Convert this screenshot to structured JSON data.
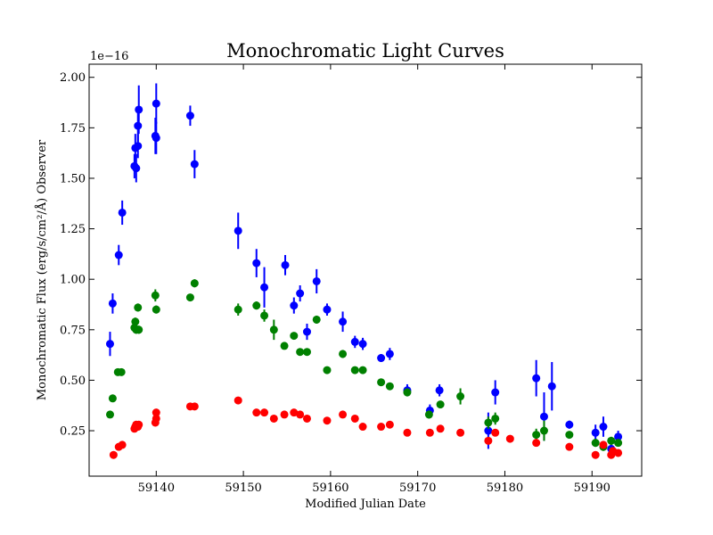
{
  "chart_data": {
    "type": "scatter",
    "title": "Monochromatic Light Curves",
    "xlabel": "Modified Julian Date",
    "ylabel": "Monochromatic Flux (erg/s/cm²/Å) Observer",
    "y_scale_label": "1e−16",
    "xlim": [
      59132.3,
      59195.7
    ],
    "ylim": [
      0.025,
      2.065
    ],
    "x_ticks": [
      59140,
      59150,
      59160,
      59170,
      59180,
      59190
    ],
    "y_ticks": [
      0.25,
      0.5,
      0.75,
      1.0,
      1.25,
      1.5,
      1.75,
      2.0
    ],
    "y_tick_labels": [
      "0.25",
      "0.50",
      "0.75",
      "1.00",
      "1.25",
      "1.50",
      "1.75",
      "2.00"
    ],
    "grid": false,
    "series": [
      {
        "color": "#0000ff",
        "points": [
          [
            59134.7,
            0.68,
            0.06
          ],
          [
            59135.0,
            0.88,
            0.05
          ],
          [
            59135.7,
            1.12,
            0.05
          ],
          [
            59136.1,
            1.33,
            0.06
          ],
          [
            59137.5,
            1.56,
            0.06
          ],
          [
            59137.6,
            1.65,
            0.07
          ],
          [
            59137.7,
            1.55,
            0.07
          ],
          [
            59137.9,
            1.66,
            0.06
          ],
          [
            59137.9,
            1.76,
            0.08
          ],
          [
            59138.0,
            1.84,
            0.12
          ],
          [
            59139.9,
            1.71,
            0.09
          ],
          [
            59140.0,
            1.87,
            0.1
          ],
          [
            59140.0,
            1.7,
            0.08
          ],
          [
            59143.9,
            1.81,
            0.05
          ],
          [
            59144.4,
            1.57,
            0.07
          ],
          [
            59149.4,
            1.24,
            0.09
          ],
          [
            59151.5,
            1.08,
            0.07
          ],
          [
            59152.4,
            0.96,
            0.1
          ],
          [
            59154.8,
            1.07,
            0.05
          ],
          [
            59155.8,
            0.87,
            0.04
          ],
          [
            59156.5,
            0.93,
            0.04
          ],
          [
            59157.3,
            0.74,
            0.04
          ],
          [
            59158.4,
            0.99,
            0.06
          ],
          [
            59159.6,
            0.85,
            0.03
          ],
          [
            59161.4,
            0.79,
            0.05
          ],
          [
            59162.8,
            0.69,
            0.03
          ],
          [
            59163.7,
            0.68,
            0.03
          ],
          [
            59165.8,
            0.61,
            0.02
          ],
          [
            59166.8,
            0.63,
            0.03
          ],
          [
            59168.8,
            0.45,
            0.03
          ],
          [
            59171.4,
            0.35,
            0.03
          ],
          [
            59172.5,
            0.45,
            0.03
          ],
          [
            59178.1,
            0.25,
            0.09
          ],
          [
            59178.9,
            0.44,
            0.06
          ],
          [
            59183.6,
            0.51,
            0.09
          ],
          [
            59184.5,
            0.32,
            0.12
          ],
          [
            59185.4,
            0.47,
            0.12
          ],
          [
            59187.4,
            0.28,
            0.02
          ],
          [
            59190.4,
            0.24,
            0.04
          ],
          [
            59191.3,
            0.27,
            0.05
          ],
          [
            59192.2,
            0.16,
            0.02
          ],
          [
            59193.0,
            0.22,
            0.03
          ]
        ]
      },
      {
        "color": "#008000",
        "points": [
          [
            59134.7,
            0.33,
            0.01
          ],
          [
            59135.0,
            0.41,
            0.01
          ],
          [
            59135.6,
            0.54,
            0.01
          ],
          [
            59136.0,
            0.54,
            0.01
          ],
          [
            59137.5,
            0.76,
            0.02
          ],
          [
            59137.6,
            0.79,
            0.02
          ],
          [
            59137.7,
            0.75,
            0.02
          ],
          [
            59137.9,
            0.86,
            0.02
          ],
          [
            59138.0,
            0.75,
            0.02
          ],
          [
            59139.9,
            0.92,
            0.03
          ],
          [
            59140.0,
            0.85,
            0.02
          ],
          [
            59143.9,
            0.91,
            0.01
          ],
          [
            59144.4,
            0.98,
            0.02
          ],
          [
            59149.4,
            0.85,
            0.03
          ],
          [
            59151.5,
            0.87,
            0.02
          ],
          [
            59152.4,
            0.82,
            0.03
          ],
          [
            59153.5,
            0.75,
            0.05
          ],
          [
            59154.7,
            0.67,
            0.01
          ],
          [
            59155.8,
            0.72,
            0.01
          ],
          [
            59156.5,
            0.64,
            0.01
          ],
          [
            59157.3,
            0.64,
            0.01
          ],
          [
            59158.4,
            0.8,
            0.02
          ],
          [
            59159.6,
            0.55,
            0.01
          ],
          [
            59161.4,
            0.63,
            0.02
          ],
          [
            59162.8,
            0.55,
            0.01
          ],
          [
            59163.7,
            0.55,
            0.01
          ],
          [
            59165.8,
            0.49,
            0.01
          ],
          [
            59166.8,
            0.47,
            0.01
          ],
          [
            59168.8,
            0.44,
            0.02
          ],
          [
            59171.3,
            0.33,
            0.02
          ],
          [
            59172.6,
            0.38,
            0.01
          ],
          [
            59174.9,
            0.42,
            0.04
          ],
          [
            59178.1,
            0.29,
            0.03
          ],
          [
            59178.9,
            0.31,
            0.03
          ],
          [
            59183.6,
            0.23,
            0.03
          ],
          [
            59184.5,
            0.25,
            0.05
          ],
          [
            59187.4,
            0.23,
            0.01
          ],
          [
            59190.4,
            0.19,
            0.02
          ],
          [
            59191.3,
            0.17,
            0.02
          ],
          [
            59192.2,
            0.2,
            0.02
          ],
          [
            59193.0,
            0.19,
            0.01
          ]
        ]
      },
      {
        "color": "#ff0000",
        "points": [
          [
            59135.1,
            0.13,
            0.01
          ],
          [
            59135.7,
            0.17,
            0.01
          ],
          [
            59136.1,
            0.18,
            0.01
          ],
          [
            59137.5,
            0.26,
            0.01
          ],
          [
            59137.6,
            0.27,
            0.01
          ],
          [
            59137.7,
            0.28,
            0.01
          ],
          [
            59137.9,
            0.27,
            0.01
          ],
          [
            59138.0,
            0.28,
            0.01
          ],
          [
            59139.9,
            0.29,
            0.01
          ],
          [
            59140.0,
            0.34,
            0.01
          ],
          [
            59140.0,
            0.31,
            0.01
          ],
          [
            59143.9,
            0.37,
            0.01
          ],
          [
            59144.4,
            0.37,
            0.01
          ],
          [
            59149.4,
            0.4,
            0.01
          ],
          [
            59151.5,
            0.34,
            0.01
          ],
          [
            59152.4,
            0.34,
            0.01
          ],
          [
            59153.5,
            0.31,
            0.01
          ],
          [
            59154.7,
            0.33,
            0.01
          ],
          [
            59155.8,
            0.34,
            0.01
          ],
          [
            59156.5,
            0.33,
            0.01
          ],
          [
            59157.3,
            0.31,
            0.01
          ],
          [
            59159.6,
            0.3,
            0.01
          ],
          [
            59161.4,
            0.33,
            0.01
          ],
          [
            59162.8,
            0.31,
            0.01
          ],
          [
            59163.7,
            0.27,
            0.01
          ],
          [
            59165.8,
            0.27,
            0.01
          ],
          [
            59166.8,
            0.28,
            0.01
          ],
          [
            59168.8,
            0.24,
            0.01
          ],
          [
            59171.4,
            0.24,
            0.01
          ],
          [
            59172.6,
            0.26,
            0.01
          ],
          [
            59174.9,
            0.24,
            0.01
          ],
          [
            59178.1,
            0.2,
            0.01
          ],
          [
            59178.9,
            0.24,
            0.01
          ],
          [
            59180.6,
            0.21,
            0.01
          ],
          [
            59183.6,
            0.19,
            0.01
          ],
          [
            59187.4,
            0.17,
            0.01
          ],
          [
            59190.4,
            0.13,
            0.01
          ],
          [
            59191.3,
            0.18,
            0.01
          ],
          [
            59192.2,
            0.13,
            0.01
          ],
          [
            59192.4,
            0.15,
            0.01
          ],
          [
            59193.0,
            0.14,
            0.01
          ]
        ]
      }
    ]
  }
}
